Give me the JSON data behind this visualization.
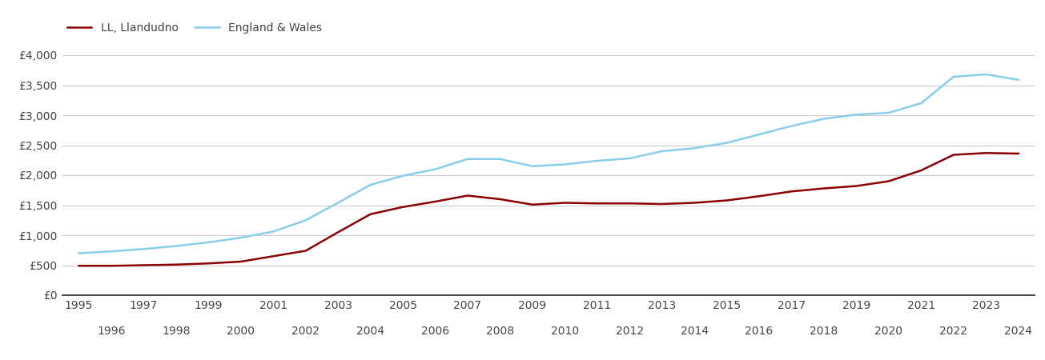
{
  "ll_llandudno": {
    "years": [
      1995,
      1996,
      1997,
      1998,
      1999,
      2000,
      2001,
      2002,
      2003,
      2004,
      2005,
      2006,
      2007,
      2008,
      2009,
      2010,
      2011,
      2012,
      2013,
      2014,
      2015,
      2016,
      2017,
      2018,
      2019,
      2020,
      2021,
      2022,
      2023,
      2024
    ],
    "values": [
      490,
      490,
      500,
      510,
      530,
      560,
      650,
      740,
      1050,
      1350,
      1470,
      1560,
      1660,
      1600,
      1510,
      1540,
      1530,
      1530,
      1520,
      1540,
      1580,
      1650,
      1730,
      1780,
      1820,
      1900,
      2080,
      2340,
      2370,
      2360
    ],
    "color": "#8B0000",
    "label": "LL, Llandudno",
    "linewidth": 1.8
  },
  "england_wales": {
    "years": [
      1995,
      1996,
      1997,
      1998,
      1999,
      2000,
      2001,
      2002,
      2003,
      2004,
      2005,
      2006,
      2007,
      2008,
      2009,
      2010,
      2011,
      2012,
      2013,
      2014,
      2015,
      2016,
      2017,
      2018,
      2019,
      2020,
      2021,
      2022,
      2023,
      2024
    ],
    "values": [
      700,
      730,
      770,
      820,
      880,
      960,
      1060,
      1250,
      1540,
      1840,
      1990,
      2100,
      2270,
      2270,
      2150,
      2180,
      2240,
      2280,
      2400,
      2450,
      2540,
      2680,
      2820,
      2940,
      3010,
      3040,
      3200,
      3640,
      3680,
      3590
    ],
    "color": "#87CEEB",
    "label": "England & Wales",
    "linewidth": 1.8
  },
  "ylim": [
    0,
    4200
  ],
  "yticks": [
    0,
    500,
    1000,
    1500,
    2000,
    2500,
    3000,
    3500,
    4000
  ],
  "ytick_labels": [
    "£0",
    "£500",
    "£1,000",
    "£1,500",
    "£2,000",
    "£2,500",
    "£3,000",
    "£3,500",
    "£4,000"
  ],
  "xlim_left": 1994.5,
  "xlim_right": 2024.5,
  "odd_years": [
    1995,
    1997,
    1999,
    2001,
    2003,
    2005,
    2007,
    2009,
    2011,
    2013,
    2015,
    2017,
    2019,
    2021,
    2023
  ],
  "even_years": [
    1996,
    1998,
    2000,
    2002,
    2004,
    2006,
    2008,
    2010,
    2012,
    2014,
    2016,
    2018,
    2020,
    2022,
    2024
  ],
  "background_color": "#ffffff",
  "grid_color": "#cccccc",
  "legend_fontsize": 10,
  "tick_fontsize": 10,
  "spine_color": "#222222"
}
